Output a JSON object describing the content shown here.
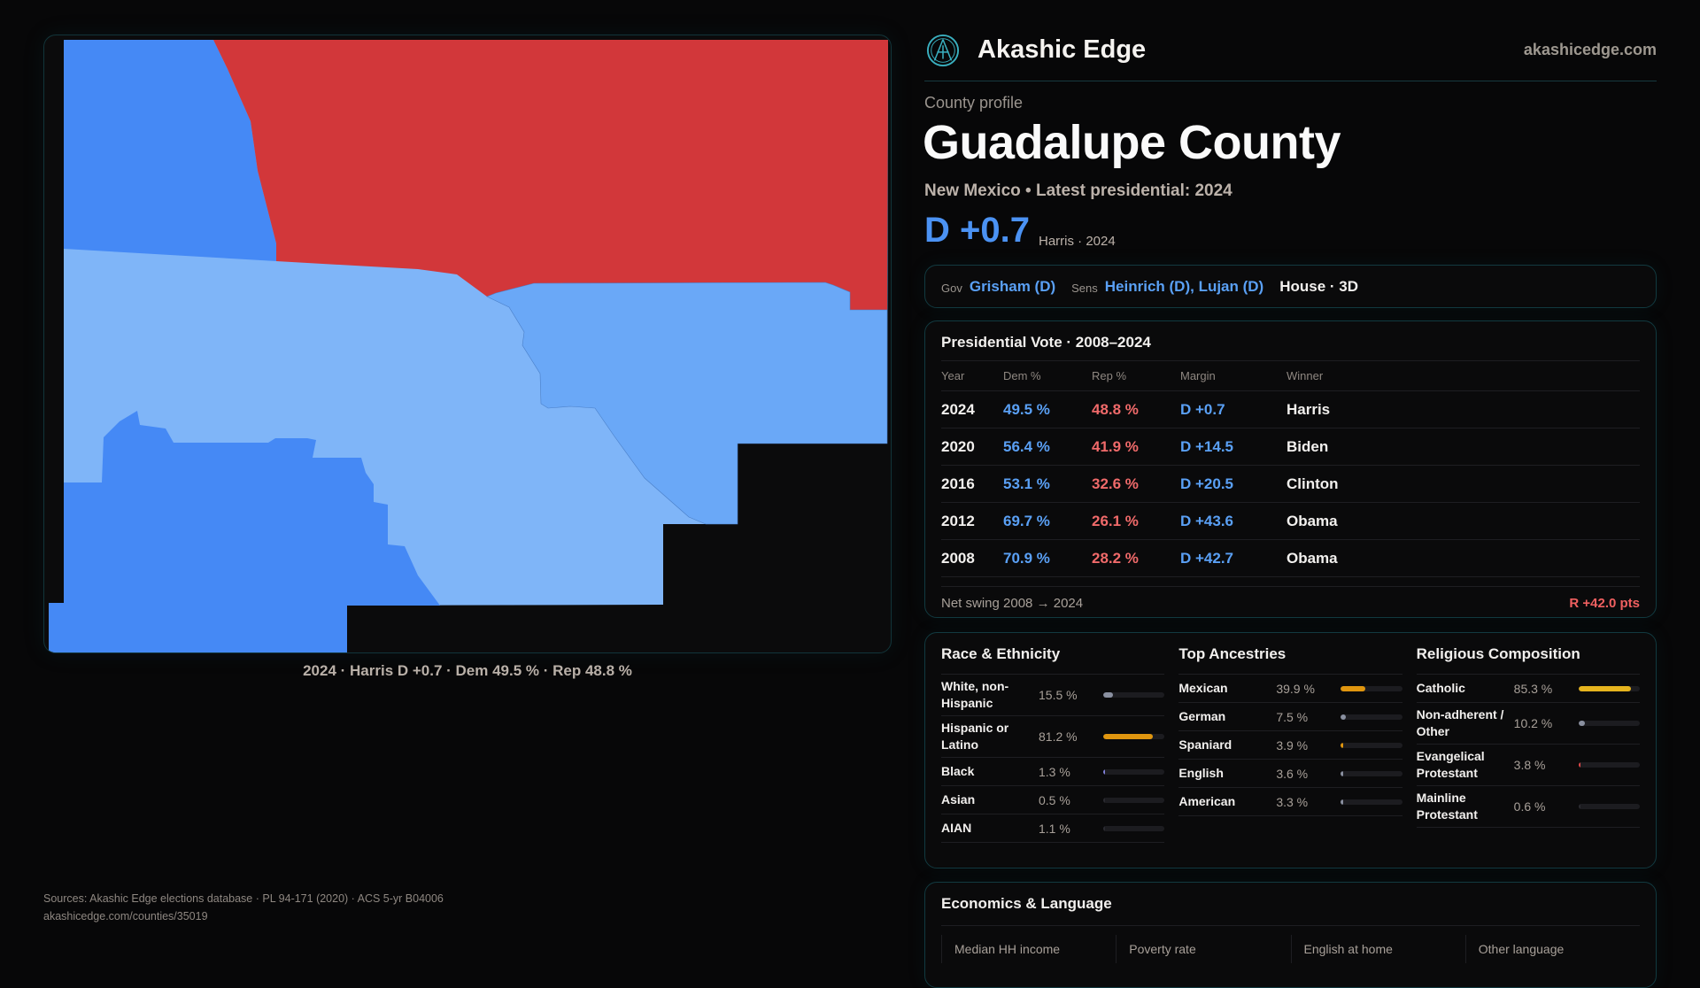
{
  "brand": {
    "name": "Akashic Edge",
    "domain": "akashicedge.com",
    "logo_icon": "akashic-emblem-icon"
  },
  "profile": {
    "kicker": "County profile",
    "title": "Guadalupe County",
    "subtitle": "New Mexico • Latest presidential: 2024",
    "margin": "D +0.7",
    "margin_sub": "Harris · 2024"
  },
  "officials": {
    "gov_label": "Gov",
    "gov": "Grisham (D)",
    "sens_label": "Sens",
    "sens": "Heinrich (D), Lujan (D)",
    "house": "House · 3D"
  },
  "map": {
    "caption": "2024 · Harris D +0.7 · Dem 49.5 % · Rep 48.8 %",
    "colors": {
      "rep": "#d2373a",
      "dem_strong": "#4589f5",
      "dem_mid": "#6aa8f7",
      "dem_light": "#7fb5f8"
    }
  },
  "presidential": {
    "title": "Presidential Vote · 2008–2024",
    "headers": [
      "Year",
      "Dem %",
      "Rep %",
      "Margin",
      "Winner"
    ],
    "rows": [
      [
        "2024",
        "49.5 %",
        "48.8 %",
        "D +0.7",
        "Harris"
      ],
      [
        "2020",
        "56.4 %",
        "41.9 %",
        "D +14.5",
        "Biden"
      ],
      [
        "2016",
        "53.1 %",
        "32.6 %",
        "D +20.5",
        "Clinton"
      ],
      [
        "2012",
        "69.7 %",
        "26.1 %",
        "D +43.6",
        "Obama"
      ],
      [
        "2008",
        "70.9 %",
        "28.2 %",
        "D +42.7",
        "Obama"
      ]
    ],
    "swing_label": "Net swing 2008 → 2024",
    "swing_value": "R +42.0 pts"
  },
  "demographics": {
    "race": {
      "title": "Race & Ethnicity",
      "items": [
        {
          "label": "White, non-Hispanic",
          "value": "15.5 %",
          "pct": 15.5,
          "color": "#8a90a0"
        },
        {
          "label": "Hispanic or Latino",
          "value": "81.2 %",
          "pct": 81.2,
          "color": "#e0960f"
        },
        {
          "label": "Black",
          "value": "1.3 %",
          "pct": 1.3,
          "color": "#8080d8"
        },
        {
          "label": "Asian",
          "value": "0.5 %",
          "pct": 0.5,
          "color": "#2a2a30"
        },
        {
          "label": "AIAN",
          "value": "1.1 %",
          "pct": 1.1,
          "color": "#2a2a30"
        }
      ]
    },
    "ancestry": {
      "title": "Top Ancestries",
      "items": [
        {
          "label": "Mexican",
          "value": "39.9 %",
          "pct": 39.9,
          "color": "#e0960f"
        },
        {
          "label": "German",
          "value": "7.5 %",
          "pct": 7.5,
          "color": "#8a90a0"
        },
        {
          "label": "Spaniard",
          "value": "3.9 %",
          "pct": 3.9,
          "color": "#e0960f"
        },
        {
          "label": "English",
          "value": "3.6 %",
          "pct": 3.6,
          "color": "#8a90a0"
        },
        {
          "label": "American",
          "value": "3.3 %",
          "pct": 3.3,
          "color": "#8a90a0"
        }
      ]
    },
    "religion": {
      "title": "Religious Composition",
      "items": [
        {
          "label": "Catholic",
          "value": "85.3 %",
          "pct": 85.3,
          "color": "#e6b41e"
        },
        {
          "label": "Non-adherent / Other",
          "value": "10.2 %",
          "pct": 10.2,
          "color": "#8a90a0"
        },
        {
          "label": "Evangelical Protestant",
          "value": "3.8 %",
          "pct": 3.8,
          "color": "#e04848"
        },
        {
          "label": "Mainline Protestant",
          "value": "0.6 %",
          "pct": 0.6,
          "color": "#2a2a30"
        }
      ]
    }
  },
  "economics": {
    "title": "Economics & Language",
    "headers": [
      "Median HH income",
      "Poverty rate",
      "English at home",
      "Other language"
    ]
  },
  "sources": {
    "line1": "Sources: Akashic Edge elections database · PL 94-171 (2020) · ACS 5-yr B04006",
    "line2": "akashicedge.com/counties/35019"
  }
}
